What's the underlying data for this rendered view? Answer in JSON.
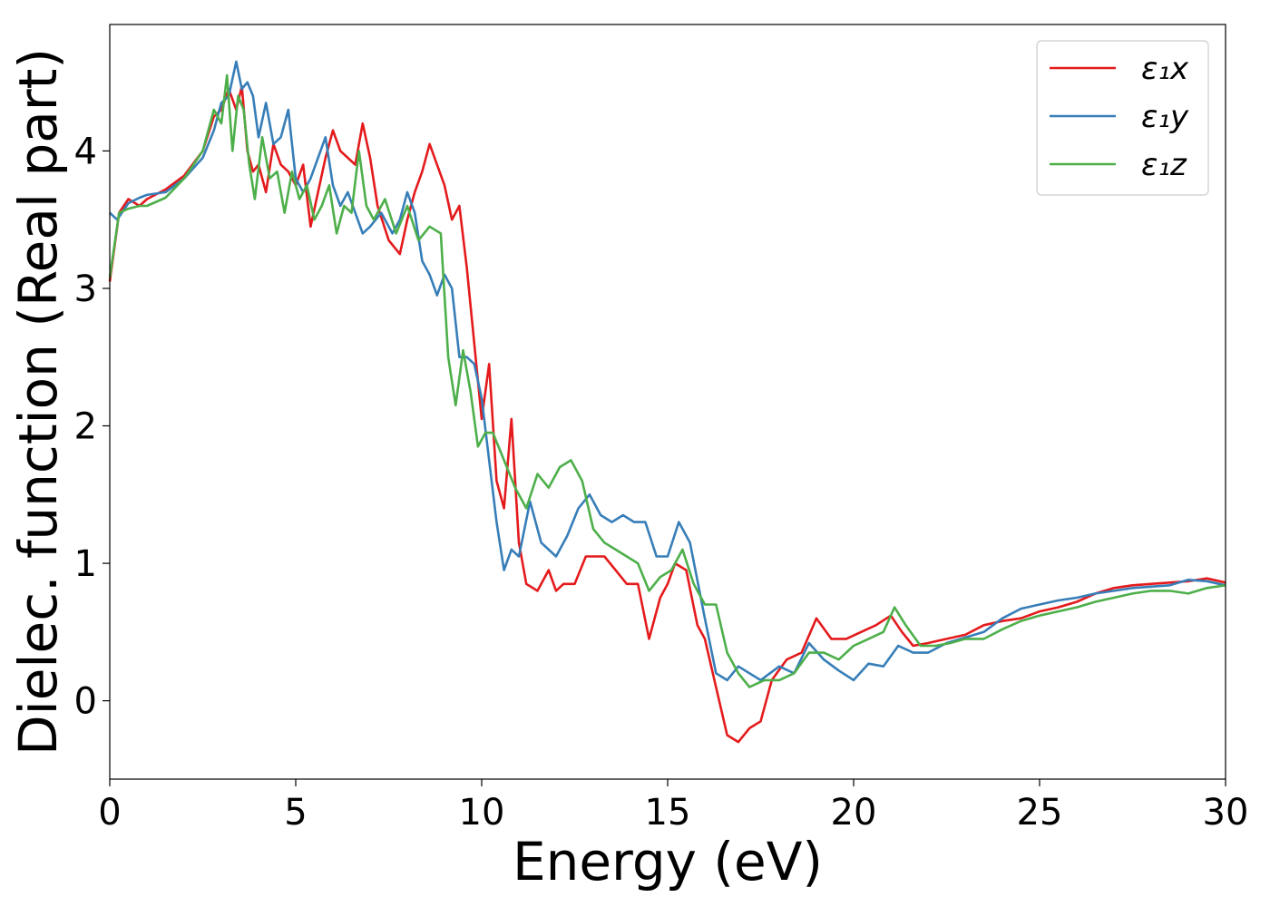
{
  "chart_data": {
    "type": "line",
    "xlabel": "Energy (eV)",
    "ylabel": "Dielec. function (Real part)",
    "xlim": [
      0,
      30
    ],
    "ylim": [
      -0.57,
      4.92
    ],
    "xticks": [
      "0",
      "5",
      "10",
      "15",
      "20",
      "25",
      "30"
    ],
    "yticks": [
      "0",
      "1",
      "2",
      "3",
      "4"
    ],
    "grid": false,
    "legend_position": "top-right",
    "series": [
      {
        "name": "ε₁x",
        "color": "#e41a1c",
        "x": [
          0,
          0.25,
          0.5,
          0.8,
          1.0,
          1.5,
          2.0,
          2.5,
          2.8,
          3.0,
          3.2,
          3.4,
          3.55,
          3.7,
          3.85,
          4.0,
          4.2,
          4.4,
          4.6,
          4.8,
          5.0,
          5.2,
          5.4,
          5.6,
          5.8,
          6.0,
          6.2,
          6.4,
          6.6,
          6.8,
          7.0,
          7.2,
          7.5,
          7.8,
          8.0,
          8.2,
          8.4,
          8.6,
          8.8,
          9.0,
          9.2,
          9.4,
          9.6,
          9.8,
          10.0,
          10.2,
          10.4,
          10.6,
          10.8,
          11.0,
          11.2,
          11.5,
          11.8,
          12.0,
          12.2,
          12.5,
          12.8,
          13.0,
          13.3,
          13.6,
          13.9,
          14.2,
          14.5,
          14.8,
          15.0,
          15.2,
          15.5,
          15.8,
          16.0,
          16.3,
          16.6,
          16.9,
          17.2,
          17.5,
          17.8,
          18.2,
          18.6,
          19.0,
          19.4,
          19.8,
          20.2,
          20.6,
          21.0,
          21.3,
          21.6,
          22.0,
          22.5,
          23.0,
          23.5,
          24.0,
          24.5,
          25.0,
          25.5,
          26.0,
          26.5,
          27.0,
          27.5,
          28.0,
          28.5,
          29.0,
          29.5,
          30.0
        ],
        "y": [
          3.05,
          3.55,
          3.65,
          3.6,
          3.65,
          3.72,
          3.82,
          4.0,
          4.25,
          4.3,
          4.45,
          4.3,
          4.47,
          4.0,
          3.85,
          3.9,
          3.7,
          4.05,
          3.9,
          3.85,
          3.75,
          3.9,
          3.45,
          3.7,
          3.95,
          4.15,
          4.0,
          3.95,
          3.9,
          4.2,
          3.95,
          3.6,
          3.35,
          3.25,
          3.5,
          3.7,
          3.85,
          4.05,
          3.9,
          3.75,
          3.5,
          3.6,
          3.15,
          2.6,
          2.05,
          2.45,
          1.6,
          1.4,
          2.05,
          1.15,
          0.85,
          0.8,
          0.95,
          0.8,
          0.85,
          0.85,
          1.05,
          1.05,
          1.05,
          0.95,
          0.85,
          0.85,
          0.45,
          0.75,
          0.85,
          1.0,
          0.95,
          0.55,
          0.45,
          0.1,
          -0.25,
          -0.3,
          -0.2,
          -0.15,
          0.15,
          0.3,
          0.35,
          0.6,
          0.45,
          0.45,
          0.5,
          0.55,
          0.62,
          0.5,
          0.4,
          0.42,
          0.45,
          0.48,
          0.55,
          0.58,
          0.6,
          0.65,
          0.68,
          0.72,
          0.78,
          0.82,
          0.84,
          0.85,
          0.86,
          0.87,
          0.89,
          0.86
        ]
      },
      {
        "name": "ε₁y",
        "color": "#377eb8",
        "x": [
          0,
          0.2,
          0.5,
          0.8,
          1.0,
          1.5,
          2.0,
          2.5,
          2.8,
          3.0,
          3.2,
          3.4,
          3.55,
          3.7,
          3.85,
          4.0,
          4.2,
          4.4,
          4.6,
          4.8,
          5.0,
          5.2,
          5.4,
          5.6,
          5.8,
          6.0,
          6.2,
          6.4,
          6.6,
          6.8,
          7.0,
          7.3,
          7.6,
          7.8,
          8.0,
          8.2,
          8.4,
          8.6,
          8.8,
          9.0,
          9.2,
          9.4,
          9.6,
          9.8,
          10.0,
          10.2,
          10.4,
          10.6,
          10.8,
          11.0,
          11.3,
          11.6,
          12.0,
          12.3,
          12.6,
          12.9,
          13.2,
          13.5,
          13.8,
          14.1,
          14.4,
          14.7,
          15.0,
          15.3,
          15.6,
          16.0,
          16.3,
          16.6,
          16.9,
          17.2,
          17.5,
          18.0,
          18.4,
          18.8,
          19.2,
          19.6,
          20.0,
          20.4,
          20.8,
          21.2,
          21.6,
          22.0,
          22.5,
          23.0,
          23.5,
          24.0,
          24.5,
          25.0,
          25.5,
          26.0,
          26.5,
          27.0,
          27.5,
          28.0,
          28.5,
          29.0,
          29.5,
          30.0
        ],
        "y": [
          3.55,
          3.5,
          3.62,
          3.66,
          3.68,
          3.7,
          3.8,
          3.95,
          4.15,
          4.35,
          4.4,
          4.65,
          4.45,
          4.5,
          4.4,
          4.1,
          4.35,
          4.05,
          4.1,
          4.3,
          3.8,
          3.7,
          3.8,
          3.95,
          4.1,
          3.75,
          3.6,
          3.7,
          3.55,
          3.4,
          3.45,
          3.55,
          3.4,
          3.5,
          3.7,
          3.55,
          3.2,
          3.1,
          2.95,
          3.1,
          3.0,
          2.5,
          2.5,
          2.45,
          2.2,
          1.75,
          1.3,
          0.95,
          1.1,
          1.05,
          1.45,
          1.15,
          1.05,
          1.2,
          1.4,
          1.5,
          1.35,
          1.3,
          1.35,
          1.3,
          1.3,
          1.05,
          1.05,
          1.3,
          1.15,
          0.6,
          0.2,
          0.15,
          0.25,
          0.2,
          0.15,
          0.25,
          0.2,
          0.42,
          0.3,
          0.22,
          0.15,
          0.27,
          0.25,
          0.4,
          0.35,
          0.35,
          0.42,
          0.46,
          0.5,
          0.6,
          0.67,
          0.7,
          0.73,
          0.75,
          0.78,
          0.8,
          0.82,
          0.83,
          0.84,
          0.88,
          0.87,
          0.84
        ]
      },
      {
        "name": "ε₁z",
        "color": "#4daf4a",
        "x": [
          0,
          0.25,
          0.5,
          0.8,
          1.0,
          1.5,
          2.0,
          2.5,
          2.8,
          3.0,
          3.15,
          3.3,
          3.45,
          3.6,
          3.75,
          3.9,
          4.1,
          4.3,
          4.5,
          4.7,
          4.9,
          5.1,
          5.3,
          5.5,
          5.7,
          5.9,
          6.1,
          6.3,
          6.5,
          6.7,
          6.9,
          7.1,
          7.4,
          7.7,
          8.0,
          8.3,
          8.6,
          8.9,
          9.1,
          9.3,
          9.5,
          9.7,
          9.9,
          10.1,
          10.3,
          10.6,
          10.9,
          11.2,
          11.5,
          11.8,
          12.1,
          12.4,
          12.7,
          13.0,
          13.3,
          13.6,
          13.9,
          14.2,
          14.5,
          14.8,
          15.1,
          15.4,
          15.7,
          16.0,
          16.3,
          16.6,
          16.9,
          17.2,
          17.6,
          18.0,
          18.4,
          18.8,
          19.2,
          19.6,
          20.0,
          20.4,
          20.8,
          21.1,
          21.4,
          21.8,
          22.2,
          22.6,
          23.0,
          23.5,
          24.0,
          24.5,
          25.0,
          25.5,
          26.0,
          26.5,
          27.0,
          27.5,
          28.0,
          28.5,
          29.0,
          29.5,
          30.0
        ],
        "y": [
          3.08,
          3.55,
          3.58,
          3.6,
          3.6,
          3.66,
          3.8,
          4.0,
          4.3,
          4.2,
          4.55,
          4.0,
          4.4,
          4.3,
          3.9,
          3.65,
          4.1,
          3.8,
          3.85,
          3.55,
          3.85,
          3.65,
          3.75,
          3.5,
          3.6,
          3.75,
          3.4,
          3.6,
          3.55,
          4.0,
          3.6,
          3.5,
          3.65,
          3.4,
          3.6,
          3.35,
          3.45,
          3.4,
          2.5,
          2.15,
          2.55,
          2.25,
          1.85,
          1.95,
          1.95,
          1.75,
          1.55,
          1.4,
          1.65,
          1.55,
          1.7,
          1.75,
          1.6,
          1.25,
          1.15,
          1.1,
          1.05,
          1.0,
          0.8,
          0.9,
          0.95,
          1.1,
          0.85,
          0.7,
          0.7,
          0.35,
          0.2,
          0.1,
          0.15,
          0.15,
          0.2,
          0.35,
          0.35,
          0.3,
          0.4,
          0.45,
          0.5,
          0.68,
          0.55,
          0.4,
          0.4,
          0.42,
          0.45,
          0.45,
          0.52,
          0.58,
          0.62,
          0.65,
          0.68,
          0.72,
          0.75,
          0.78,
          0.8,
          0.8,
          0.78,
          0.82,
          0.84
        ]
      }
    ]
  }
}
